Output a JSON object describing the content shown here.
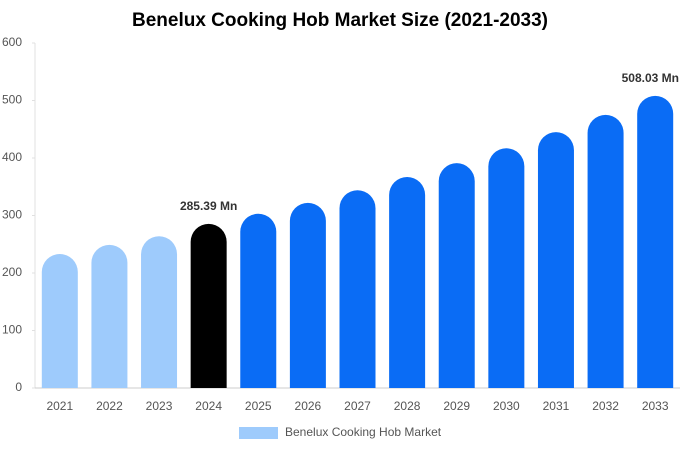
{
  "chart_data": {
    "type": "bar",
    "title": "Benelux Cooking Hob Market Size (2021-2033)",
    "categories": [
      "2021",
      "2022",
      "2023",
      "2024",
      "2025",
      "2026",
      "2027",
      "2028",
      "2029",
      "2030",
      "2031",
      "2032",
      "2033"
    ],
    "series": [
      {
        "name": "Benelux Cooking Hob Market",
        "color": "#9ecbfc",
        "values": [
          233,
          249,
          264,
          285.39,
          303,
          322,
          344,
          367,
          391,
          417,
          445,
          475,
          508.03
        ],
        "value_labels": [
          null,
          null,
          null,
          "285.39 Mn",
          null,
          null,
          null,
          null,
          null,
          null,
          null,
          null,
          "508.03 Mn"
        ],
        "colors": [
          "#9ecbfc",
          "#9ecbfc",
          "#9ecbfc",
          "#000000",
          "#0a6cf5",
          "#0a6cf5",
          "#0a6cf5",
          "#0a6cf5",
          "#0a6cf5",
          "#0a6cf5",
          "#0a6cf5",
          "#0a6cf5",
          "#0a6cf5"
        ]
      }
    ],
    "ylim": [
      0,
      600
    ],
    "yticks": [
      0,
      100,
      200,
      300,
      400,
      500,
      600
    ],
    "grid": false
  }
}
